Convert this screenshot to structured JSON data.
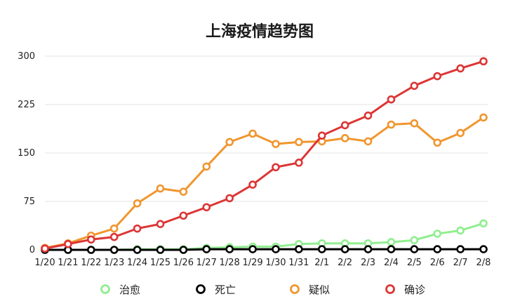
{
  "chart_data": {
    "type": "line",
    "title": "上海疫情趋势图",
    "xlabel": "",
    "ylabel": "",
    "ylim": [
      0,
      300
    ],
    "yticks": [
      "0",
      "75",
      "150",
      "225",
      "300"
    ],
    "grid": true,
    "legend_position": "bottom",
    "categories": [
      "1/20",
      "1/21",
      "1/22",
      "1/23",
      "1/24",
      "1/25",
      "1/26",
      "1/27",
      "1/28",
      "1/29",
      "1/30",
      "1/31",
      "2/1",
      "2/2",
      "2/3",
      "2/4",
      "2/5",
      "2/6",
      "2/7",
      "2/8"
    ],
    "series": [
      {
        "name": "治愈",
        "color": "#90ee90",
        "values": [
          0,
          0,
          0,
          0,
          1,
          1,
          1,
          3,
          4,
          5,
          5,
          9,
          10,
          10,
          10,
          12,
          15,
          25,
          30,
          41
        ]
      },
      {
        "name": "死亡",
        "color": "#000000",
        "values": [
          0,
          0,
          0,
          0,
          0,
          0,
          0,
          1,
          1,
          1,
          1,
          1,
          1,
          1,
          1,
          1,
          1,
          1,
          1,
          1
        ]
      },
      {
        "name": "疑似",
        "color": "#f0962e",
        "values": [
          3,
          10,
          22,
          33,
          72,
          95,
          90,
          129,
          167,
          180,
          164,
          167,
          168,
          173,
          168,
          194,
          196,
          166,
          181,
          205
        ]
      },
      {
        "name": "确诊",
        "color": "#dd3535",
        "values": [
          2,
          9,
          16,
          20,
          33,
          40,
          53,
          66,
          80,
          101,
          128,
          135,
          177,
          193,
          208,
          233,
          254,
          269,
          281,
          292
        ]
      }
    ]
  }
}
